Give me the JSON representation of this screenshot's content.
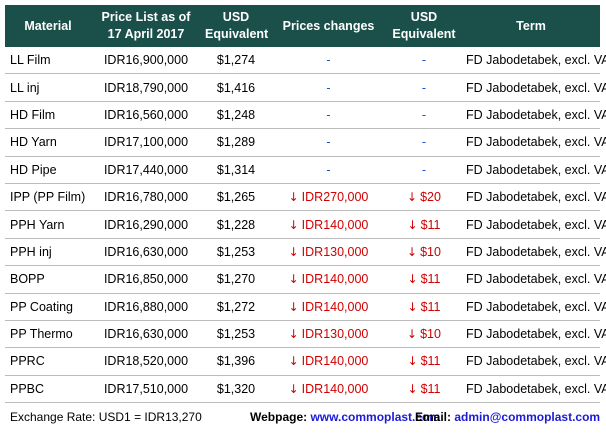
{
  "table": {
    "headers": {
      "material": "Material",
      "price_line1": "Price List as of",
      "price_line2": "17 April 2017",
      "usd_line1": "USD",
      "usd_line2": "Equivalent",
      "changes": "Prices changes",
      "usd2_line1": "USD",
      "usd2_line2": "Equivalent",
      "term": "Term"
    },
    "rows": [
      {
        "material": "LL Film",
        "price": "IDR16,900,000",
        "usd": "$1,274",
        "change": "-",
        "change_usd": "-",
        "term": "FD Jabodetabek, excl. VAT"
      },
      {
        "material": "LL inj",
        "price": "IDR18,790,000",
        "usd": "$1,416",
        "change": "-",
        "change_usd": "-",
        "term": "FD Jabodetabek, excl. VAT"
      },
      {
        "material": "HD Film",
        "price": "IDR16,560,000",
        "usd": "$1,248",
        "change": "-",
        "change_usd": "-",
        "term": "FD Jabodetabek, excl. VAT"
      },
      {
        "material": "HD Yarn",
        "price": "IDR17,100,000",
        "usd": "$1,289",
        "change": "-",
        "change_usd": "-",
        "term": "FD Jabodetabek, excl. VAT"
      },
      {
        "material": "HD Pipe",
        "price": "IDR17,440,000",
        "usd": "$1,314",
        "change": "-",
        "change_usd": "-",
        "term": "FD Jabodetabek, excl. VAT"
      },
      {
        "material": "IPP (PP Film)",
        "price": "IDR16,780,000",
        "usd": "$1,265",
        "change": "IDR270,000",
        "change_usd": "$20",
        "term": "FD Jabodetabek, excl. VAT"
      },
      {
        "material": "PPH Yarn",
        "price": "IDR16,290,000",
        "usd": "$1,228",
        "change": "IDR140,000",
        "change_usd": "$11",
        "term": "FD Jabodetabek, excl. VAT"
      },
      {
        "material": "PPH inj",
        "price": "IDR16,630,000",
        "usd": "$1,253",
        "change": "IDR130,000",
        "change_usd": "$10",
        "term": "FD Jabodetabek, excl. VAT"
      },
      {
        "material": "BOPP",
        "price": "IDR16,850,000",
        "usd": "$1,270",
        "change": "IDR140,000",
        "change_usd": "$11",
        "term": "FD Jabodetabek, excl. VAT"
      },
      {
        "material": "PP Coating",
        "price": "IDR16,880,000",
        "usd": "$1,272",
        "change": "IDR140,000",
        "change_usd": "$11",
        "term": "FD Jabodetabek, excl. VAT"
      },
      {
        "material": "PP Thermo",
        "price": "IDR16,630,000",
        "usd": "$1,253",
        "change": "IDR130,000",
        "change_usd": "$10",
        "term": "FD Jabodetabek, excl. VAT"
      },
      {
        "material": "PPRC",
        "price": "IDR18,520,000",
        "usd": "$1,396",
        "change": "IDR140,000",
        "change_usd": "$11",
        "term": "FD Jabodetabek, excl. VAT"
      },
      {
        "material": "PPBC",
        "price": "IDR17,510,000",
        "usd": "$1,320",
        "change": "IDR140,000",
        "change_usd": "$11",
        "term": "FD Jabodetabek, excl. VAT"
      }
    ]
  },
  "footer": {
    "exchange_rate": "Exchange Rate: USD1 = IDR13,270",
    "webpage_label": "Webpage:",
    "webpage_value": "www.commoplast.com",
    "email_label": "Email:",
    "email_value": "admin@commoplast.com"
  },
  "colors": {
    "header_bg": "#1b4f4a",
    "no_change_dash": "#1f4fd0",
    "decrease": "#d00000",
    "link": "#1a1ad8"
  },
  "icons": {
    "decrease": "down-arrow-icon"
  }
}
